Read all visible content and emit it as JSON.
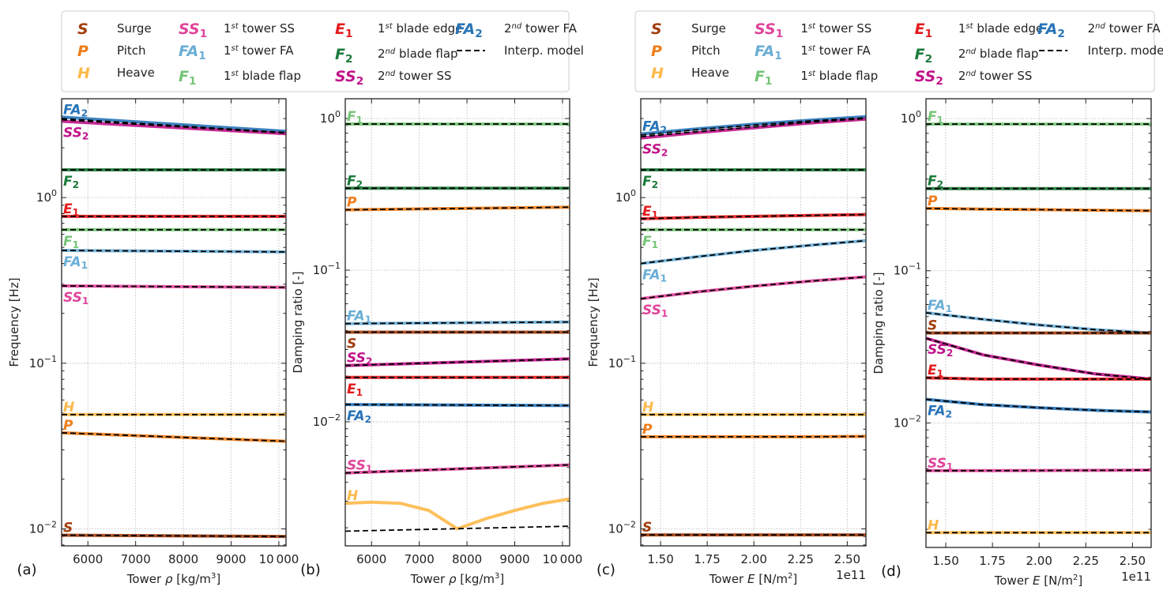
{
  "modes": {
    "S": {
      "symbol": "S",
      "sub": "",
      "label": "Surge",
      "sup": "",
      "color": "#a33d0c"
    },
    "P": {
      "symbol": "P",
      "sub": "",
      "label": "Pitch",
      "sup": "",
      "color": "#ef7d1a"
    },
    "H": {
      "symbol": "H",
      "sub": "",
      "label": "Heave",
      "sup": "",
      "color": "#fdb94a"
    },
    "SS1": {
      "symbol": "SS",
      "sub": "1",
      "label": " tower SS",
      "sup": "st",
      "ord": "1",
      "color": "#e0449a"
    },
    "FA1": {
      "symbol": "FA",
      "sub": "1",
      "label": " tower FA",
      "sup": "st",
      "ord": "1",
      "color": "#6baed6"
    },
    "F1": {
      "symbol": "F",
      "sub": "1",
      "label": " blade flap",
      "sup": "st",
      "ord": "1",
      "color": "#74c476"
    },
    "E1": {
      "symbol": "E",
      "sub": "1",
      "label": " blade edge",
      "sup": "st",
      "ord": "1",
      "color": "#e31a1c"
    },
    "F2": {
      "symbol": "F",
      "sub": "2",
      "label": " blade flap",
      "sup": "nd",
      "ord": "2",
      "color": "#1a7a3a"
    },
    "SS2": {
      "symbol": "SS",
      "sub": "2",
      "label": " tower SS",
      "sup": "nd",
      "ord": "2",
      "color": "#c0148a"
    },
    "FA2": {
      "symbol": "FA",
      "sub": "2",
      "label": " tower FA",
      "sup": "nd",
      "ord": "2",
      "color": "#2874b8"
    }
  },
  "legend": {
    "columns": [
      [
        "S",
        "P",
        "H"
      ],
      [
        "SS1",
        "FA1",
        "F1"
      ],
      [
        "E1",
        "F2",
        "SS2"
      ],
      [
        "FA2",
        "INTERP"
      ]
    ],
    "interp_label": "Interp. model"
  },
  "chart_data": [
    {
      "panel": "(a)",
      "type": "line",
      "xlabel": "Tower ρ [kg/m³]",
      "ylabel": "Frequency [Hz]",
      "xscale": "linear",
      "yscale": "log",
      "xlim": [
        5450,
        10150
      ],
      "ylim": [
        0.0079,
        3.95
      ],
      "xticks": [
        6000,
        7000,
        8000,
        9000,
        10000
      ],
      "xticklabels": [
        "6000",
        "7000",
        "8000",
        "9000",
        "10 000"
      ],
      "yticks": [
        0.01,
        0.1,
        1
      ],
      "yticklabels": [
        "10⁻²",
        "10⁻¹",
        "10⁰"
      ],
      "x_multiplier": "",
      "grid": true,
      "x": [
        5450,
        10150
      ],
      "series": [
        {
          "mode": "FA2",
          "values": [
            3.06,
            2.51
          ],
          "label_side": "above"
        },
        {
          "mode": "SS2",
          "values": [
            2.89,
            2.43
          ],
          "label_side": "below"
        },
        {
          "mode": "F2",
          "values": [
            1.47,
            1.47
          ],
          "label_side": "below"
        },
        {
          "mode": "E1",
          "values": [
            0.77,
            0.77
          ],
          "label_side": "above"
        },
        {
          "mode": "F1",
          "values": [
            0.64,
            0.64
          ],
          "label_side": "below"
        },
        {
          "mode": "FA1",
          "values": [
            0.48,
            0.47
          ],
          "label_side": "below"
        },
        {
          "mode": "SS1",
          "values": [
            0.293,
            0.287
          ],
          "label_side": "below"
        },
        {
          "mode": "H",
          "values": [
            0.049,
            0.049
          ],
          "label_side": "above"
        },
        {
          "mode": "P",
          "values": [
            0.038,
            0.0338
          ],
          "label_side": "above"
        },
        {
          "mode": "S",
          "values": [
            0.00916,
            0.009
          ],
          "label_side": "above"
        }
      ],
      "interp": [
        {
          "mode": "FA2",
          "values": [
            3.0,
            2.47
          ]
        },
        {
          "mode": "SS2",
          "values": [
            2.95,
            2.45
          ]
        },
        {
          "mode": "F2",
          "values": [
            1.47,
            1.47
          ]
        },
        {
          "mode": "E1",
          "values": [
            0.77,
            0.77
          ]
        },
        {
          "mode": "F1",
          "values": [
            0.64,
            0.64
          ]
        },
        {
          "mode": "FA1",
          "values": [
            0.48,
            0.47
          ]
        },
        {
          "mode": "SS1",
          "values": [
            0.293,
            0.287
          ]
        },
        {
          "mode": "H",
          "values": [
            0.049,
            0.049
          ]
        },
        {
          "mode": "P",
          "values": [
            0.038,
            0.0338
          ]
        },
        {
          "mode": "S",
          "values": [
            0.00916,
            0.009
          ]
        }
      ]
    },
    {
      "panel": "(b)",
      "type": "line",
      "xlabel": "Tower ρ [kg/m³]",
      "ylabel": "Damping ratio [-]",
      "xscale": "linear",
      "yscale": "log",
      "xlim": [
        5450,
        10150
      ],
      "ylim": [
        0.00152,
        1.35
      ],
      "xticks": [
        6000,
        7000,
        8000,
        9000,
        10000
      ],
      "xticklabels": [
        "6000",
        "7000",
        "8000",
        "9000",
        "10 000"
      ],
      "yticks": [
        0.01,
        0.1,
        1
      ],
      "yticklabels": [
        "10⁻²",
        "10⁻¹",
        "10⁰"
      ],
      "x_multiplier": "",
      "grid": true,
      "x": [
        5450,
        10150
      ],
      "series": [
        {
          "mode": "F1",
          "values": [
            0.92,
            0.92
          ],
          "label_side": "above"
        },
        {
          "mode": "F2",
          "values": [
            0.347,
            0.347
          ],
          "label_side": "above"
        },
        {
          "mode": "P",
          "values": [
            0.25,
            0.26
          ],
          "label_side": "above"
        },
        {
          "mode": "FA1",
          "values": [
            0.0444,
            0.0455
          ],
          "label_side": "above"
        },
        {
          "mode": "S",
          "values": [
            0.039,
            0.039
          ],
          "label_side": "below"
        },
        {
          "mode": "SS2",
          "values": [
            0.0235,
            0.026
          ],
          "label_side": "above"
        },
        {
          "mode": "E1",
          "values": [
            0.0196,
            0.0196
          ],
          "label_side": "below"
        },
        {
          "mode": "FA2",
          "values": [
            0.013,
            0.0128
          ],
          "label_side": "below"
        },
        {
          "mode": "SS1",
          "values": [
            0.0046,
            0.0052
          ],
          "label_side": "above"
        },
        {
          "mode": "H",
          "x": [
            5450,
            6000,
            6600,
            7200,
            7800,
            8400,
            9000,
            9600,
            10150
          ],
          "values": [
            0.0029,
            0.00295,
            0.0029,
            0.0026,
            0.00197,
            0.0023,
            0.0026,
            0.0029,
            0.0031
          ],
          "label_side": "above"
        }
      ],
      "interp": [
        {
          "mode": "F1",
          "values": [
            0.92,
            0.92
          ]
        },
        {
          "mode": "F2",
          "values": [
            0.347,
            0.347
          ]
        },
        {
          "mode": "P",
          "values": [
            0.25,
            0.26
          ]
        },
        {
          "mode": "FA1",
          "values": [
            0.0444,
            0.0455
          ]
        },
        {
          "mode": "S",
          "values": [
            0.039,
            0.039
          ]
        },
        {
          "mode": "SS2",
          "values": [
            0.0235,
            0.026
          ]
        },
        {
          "mode": "E1",
          "values": [
            0.0196,
            0.0196
          ]
        },
        {
          "mode": "FA2",
          "values": [
            0.013,
            0.0128
          ]
        },
        {
          "mode": "SS1",
          "values": [
            0.0046,
            0.0052
          ]
        },
        {
          "mode": "H",
          "values": [
            0.0019,
            0.00205
          ]
        }
      ]
    },
    {
      "panel": "(c)",
      "type": "line",
      "xlabel": "Tower E [N/m²]",
      "ylabel": "Frequency [Hz]",
      "xscale": "linear",
      "yscale": "log",
      "xlim": [
        1.394,
        2.6
      ],
      "ylim": [
        0.0079,
        3.95
      ],
      "xticks": [
        1.5,
        1.75,
        2.0,
        2.25,
        2.5
      ],
      "xticklabels": [
        "1.50",
        "1.75",
        "2.00",
        "2.25",
        "2.50"
      ],
      "yticks": [
        0.01,
        0.1,
        1
      ],
      "yticklabels": [
        "10⁻²",
        "10⁻¹",
        "10⁰"
      ],
      "x_multiplier": "1e11",
      "grid": true,
      "x": [
        1.394,
        1.7,
        2.0,
        2.3,
        2.6
      ],
      "series": [
        {
          "mode": "FA2",
          "values": [
            2.42,
            2.6,
            2.77,
            2.93,
            3.08
          ],
          "label_side": "above"
        },
        {
          "mode": "SS2",
          "values": [
            2.29,
            2.47,
            2.64,
            2.82,
            2.98
          ],
          "label_side": "below"
        },
        {
          "mode": "F2",
          "values": [
            1.47,
            1.47,
            1.47,
            1.47,
            1.47
          ],
          "label_side": "below"
        },
        {
          "mode": "E1",
          "values": [
            0.745,
            0.76,
            0.77,
            0.78,
            0.79
          ],
          "label_side": "above"
        },
        {
          "mode": "F1",
          "values": [
            0.64,
            0.64,
            0.64,
            0.64,
            0.64
          ],
          "label_side": "below"
        },
        {
          "mode": "FA1",
          "values": [
            0.4,
            0.44,
            0.48,
            0.515,
            0.55
          ],
          "label_side": "below"
        },
        {
          "mode": "SS1",
          "values": [
            0.245,
            0.27,
            0.292,
            0.313,
            0.332
          ],
          "label_side": "below"
        },
        {
          "mode": "H",
          "values": [
            0.049,
            0.049,
            0.049,
            0.049,
            0.049
          ],
          "label_side": "above"
        },
        {
          "mode": "P",
          "values": [
            0.036,
            0.036,
            0.036,
            0.036,
            0.0362
          ],
          "label_side": "above"
        },
        {
          "mode": "S",
          "values": [
            0.0092,
            0.0092,
            0.0092,
            0.0092,
            0.0092
          ],
          "label_side": "above"
        }
      ],
      "interp": [
        {
          "mode": "FA2",
          "values": [
            2.38,
            2.57,
            2.74,
            2.9,
            3.03
          ]
        },
        {
          "mode": "SS2",
          "values": [
            2.33,
            2.5,
            2.67,
            2.85,
            3.0
          ]
        },
        {
          "mode": "F2",
          "values": [
            1.47,
            1.47,
            1.47,
            1.47,
            1.47
          ]
        },
        {
          "mode": "E1",
          "values": [
            0.745,
            0.76,
            0.77,
            0.78,
            0.79
          ]
        },
        {
          "mode": "F1",
          "values": [
            0.64,
            0.64,
            0.64,
            0.64,
            0.64
          ]
        },
        {
          "mode": "FA1",
          "values": [
            0.4,
            0.44,
            0.48,
            0.515,
            0.55
          ]
        },
        {
          "mode": "SS1",
          "values": [
            0.245,
            0.27,
            0.292,
            0.313,
            0.332
          ]
        },
        {
          "mode": "H",
          "values": [
            0.049,
            0.049,
            0.049,
            0.049,
            0.049
          ]
        },
        {
          "mode": "P",
          "values": [
            0.036,
            0.036,
            0.036,
            0.036,
            0.0362
          ]
        },
        {
          "mode": "S",
          "values": [
            0.0092,
            0.0092,
            0.0092,
            0.0092,
            0.0092
          ]
        }
      ]
    },
    {
      "panel": "(d)",
      "type": "line",
      "xlabel": "Tower E [N/m²]",
      "ylabel": "Damping ratio [-]",
      "xscale": "linear",
      "yscale": "log",
      "xlim": [
        1.394,
        2.6
      ],
      "ylim": [
        0.00152,
        1.35
      ],
      "xticks": [
        1.5,
        1.75,
        2.0,
        2.25,
        2.5
      ],
      "xticklabels": [
        "1.50",
        "1.75",
        "2.00",
        "2.25",
        "2.50"
      ],
      "yticks": [
        0.01,
        0.1,
        1
      ],
      "yticklabels": [
        "10⁻²",
        "10⁻¹",
        "10⁰"
      ],
      "x_multiplier": "1e11",
      "grid": true,
      "x": [
        1.394,
        1.7,
        2.0,
        2.3,
        2.6
      ],
      "series": [
        {
          "mode": "F1",
          "values": [
            0.92,
            0.92,
            0.92,
            0.92,
            0.92
          ],
          "label_side": "above"
        },
        {
          "mode": "F2",
          "values": [
            0.347,
            0.347,
            0.347,
            0.347,
            0.347
          ],
          "label_side": "above"
        },
        {
          "mode": "P",
          "values": [
            0.257,
            0.254,
            0.252,
            0.25,
            0.248
          ],
          "label_side": "above"
        },
        {
          "mode": "FA1",
          "values": [
            0.053,
            0.048,
            0.044,
            0.041,
            0.039
          ],
          "label_side": "above"
        },
        {
          "mode": "S",
          "values": [
            0.039,
            0.039,
            0.039,
            0.039,
            0.039
          ],
          "label_side": "above"
        },
        {
          "mode": "SS2",
          "values": [
            0.036,
            0.028,
            0.024,
            0.021,
            0.0194
          ],
          "label_side": "below"
        },
        {
          "mode": "E1",
          "values": [
            0.0198,
            0.0194,
            0.0194,
            0.0194,
            0.0194
          ],
          "label_side": "above"
        },
        {
          "mode": "FA2",
          "values": [
            0.0143,
            0.0132,
            0.0126,
            0.0121,
            0.0118
          ],
          "label_side": "below"
        },
        {
          "mode": "SS1",
          "values": [
            0.00486,
            0.00486,
            0.00487,
            0.00488,
            0.0049
          ],
          "label_side": "above"
        },
        {
          "mode": "H",
          "values": [
            0.0019,
            0.0019,
            0.0019,
            0.0019,
            0.0019
          ],
          "label_side": "above"
        }
      ],
      "interp": [
        {
          "mode": "F1",
          "values": [
            0.92,
            0.92,
            0.92,
            0.92,
            0.92
          ]
        },
        {
          "mode": "F2",
          "values": [
            0.347,
            0.347,
            0.347,
            0.347,
            0.347
          ]
        },
        {
          "mode": "P",
          "values": [
            0.257,
            0.254,
            0.252,
            0.25,
            0.248
          ]
        },
        {
          "mode": "FA1",
          "values": [
            0.053,
            0.048,
            0.044,
            0.041,
            0.039
          ]
        },
        {
          "mode": "S",
          "values": [
            0.039,
            0.039,
            0.039,
            0.039,
            0.039
          ]
        },
        {
          "mode": "SS2",
          "values": [
            0.036,
            0.028,
            0.024,
            0.021,
            0.0194
          ]
        },
        {
          "mode": "E1",
          "values": [
            0.0198,
            0.0194,
            0.0194,
            0.0194,
            0.0194
          ]
        },
        {
          "mode": "FA2",
          "values": [
            0.0143,
            0.0132,
            0.0126,
            0.0121,
            0.0118
          ]
        },
        {
          "mode": "SS1",
          "values": [
            0.00486,
            0.00486,
            0.00487,
            0.00488,
            0.0049
          ]
        },
        {
          "mode": "H",
          "values": [
            0.0019,
            0.0019,
            0.0019,
            0.0019,
            0.0019
          ]
        }
      ]
    }
  ]
}
